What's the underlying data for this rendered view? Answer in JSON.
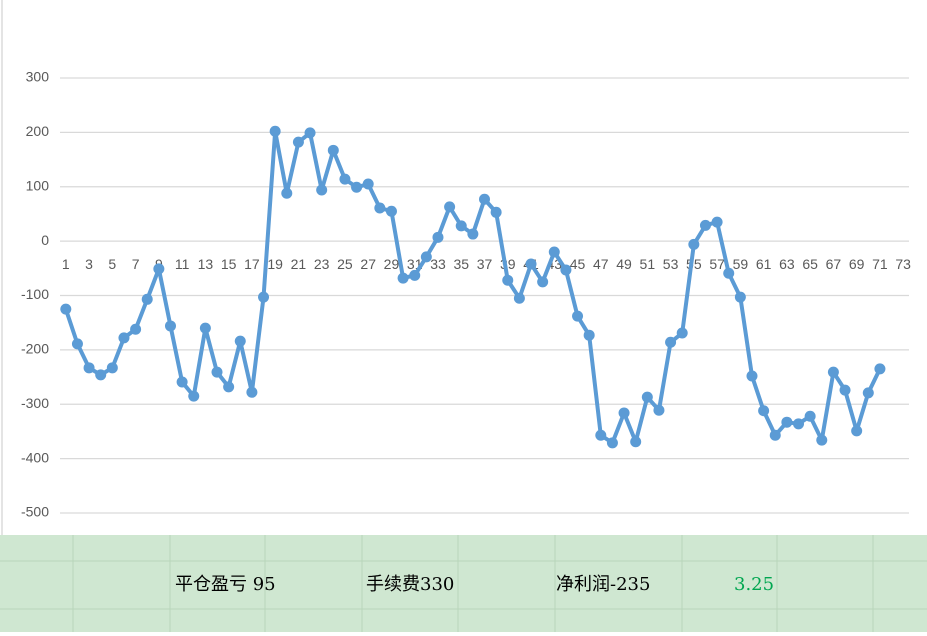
{
  "chart_data": {
    "type": "line",
    "color": "#5b9bd5",
    "grid": true,
    "categories": [
      1,
      null,
      3,
      null,
      5,
      null,
      7,
      null,
      9,
      null,
      11,
      null,
      13,
      null,
      15,
      null,
      17,
      null,
      19,
      null,
      21,
      null,
      23,
      null,
      25,
      null,
      27,
      null,
      29,
      null,
      31,
      null,
      33,
      null,
      35,
      null,
      37,
      null,
      39,
      null,
      41,
      null,
      43,
      null,
      45,
      null,
      47,
      null,
      49,
      null,
      51,
      null,
      53,
      null,
      55,
      null,
      57,
      null,
      59,
      null,
      61,
      null,
      63,
      null,
      65,
      null,
      67,
      null,
      69,
      null,
      71,
      null,
      73
    ],
    "values": [
      -125,
      -189,
      -233,
      -246,
      -233,
      -178,
      -162,
      -107,
      -51,
      -156,
      -259,
      -285,
      -160,
      -241,
      -268,
      -184,
      -278,
      -103,
      202,
      88,
      182,
      199,
      94,
      167,
      114,
      99,
      105,
      61,
      55,
      -68,
      -63,
      -29,
      7,
      63,
      28,
      13,
      77,
      53,
      -72,
      -105,
      -42,
      -75,
      -20,
      -53,
      -138,
      -173,
      -357,
      -371,
      -316,
      -369,
      -287,
      -311,
      -186,
      -169,
      -6,
      29,
      35,
      -59,
      -103,
      -248,
      -312,
      -357,
      -333,
      -336,
      -322,
      -366,
      -241,
      -274,
      -349,
      -279,
      -235,
      null,
      null
    ],
    "ylim": [
      -500,
      300
    ],
    "yticks": [
      -500,
      -400,
      -300,
      -200,
      -100,
      0,
      100,
      200,
      300
    ]
  },
  "footer": {
    "cells": [
      "平仓盈亏 95",
      "手续费330",
      "净利润-235",
      "3.25"
    ]
  }
}
